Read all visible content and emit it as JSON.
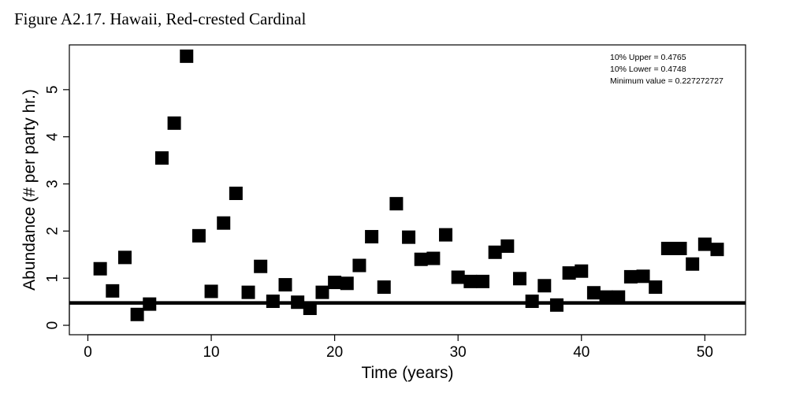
{
  "figure_title": "Figure A2.17. Hawaii, Red-crested Cardinal",
  "chart_data": {
    "type": "scatter",
    "xlabel": "Time (years)",
    "ylabel": "Abundance (# per party hr.)",
    "xlim": [
      -1.5,
      53.3
    ],
    "ylim": [
      -0.2,
      5.95
    ],
    "xticks": [
      0,
      10,
      20,
      30,
      40,
      50
    ],
    "yticks": [
      0,
      1,
      2,
      3,
      4,
      5
    ],
    "grid": false,
    "marker": "square",
    "marker_color": "#000000",
    "reference_line": {
      "y": 0.4748,
      "color": "#000000"
    },
    "annotations": [
      "10% Upper =  0.4765",
      "10% Lower =  0.4748",
      "Minimum value =  0.227272727"
    ],
    "x": [
      1,
      2,
      3,
      4,
      5,
      6,
      7,
      8,
      9,
      10,
      11,
      12,
      13,
      14,
      15,
      16,
      17,
      18,
      19,
      20,
      21,
      22,
      23,
      24,
      25,
      26,
      27,
      28,
      29,
      30,
      31,
      32,
      33,
      34,
      35,
      36,
      37,
      38,
      39,
      40,
      41,
      42,
      43,
      44,
      45,
      46,
      47,
      48,
      49,
      50,
      51
    ],
    "y": [
      1.2,
      0.73,
      1.44,
      0.23,
      0.45,
      3.55,
      4.29,
      5.71,
      1.9,
      0.72,
      2.17,
      2.8,
      0.7,
      1.25,
      0.51,
      0.86,
      0.49,
      0.36,
      0.7,
      0.91,
      0.89,
      1.27,
      1.88,
      0.81,
      2.58,
      1.87,
      1.4,
      1.42,
      1.92,
      1.02,
      0.93,
      0.93,
      1.55,
      1.68,
      0.99,
      0.51,
      0.84,
      0.43,
      1.11,
      1.15,
      0.69,
      0.6,
      0.6,
      1.03,
      1.04,
      0.81,
      1.63,
      1.63,
      1.3,
      1.72,
      1.61
    ]
  }
}
